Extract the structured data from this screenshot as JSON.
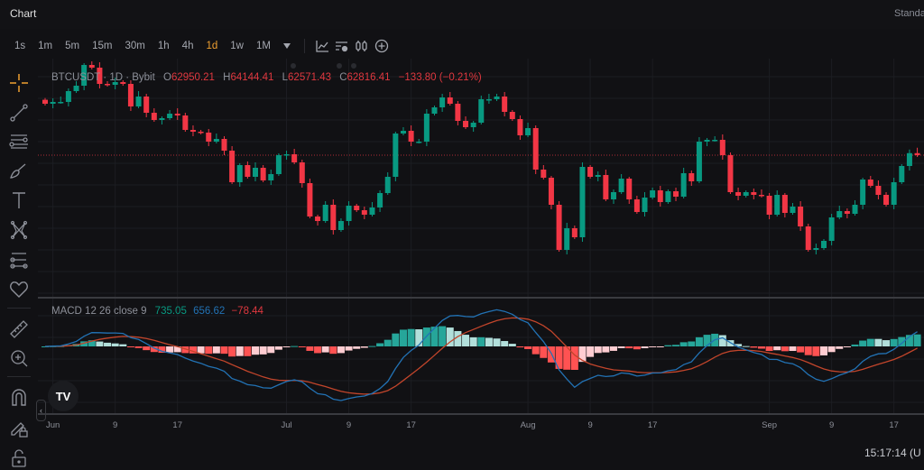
{
  "app": {
    "title": "Chart",
    "layout_label": "Standa"
  },
  "toolbar": {
    "timeframes": [
      {
        "label": "1s"
      },
      {
        "label": "1m"
      },
      {
        "label": "5m"
      },
      {
        "label": "15m"
      },
      {
        "label": "30m"
      },
      {
        "label": "1h"
      },
      {
        "label": "4h"
      },
      {
        "label": "1d",
        "active": true
      },
      {
        "label": "1w"
      },
      {
        "label": "1M"
      }
    ],
    "icons": [
      "chevron-down-icon",
      "indicators-icon",
      "chart-settings-icon",
      "candles-icon",
      "add-icon"
    ]
  },
  "left_toolbar": {
    "icons": [
      "crosshair-icon",
      "trend-line-icon",
      "fib-lines-icon",
      "brush-icon",
      "text-icon",
      "pattern-icon",
      "forecast-icon",
      "heart-icon",
      "ruler-icon",
      "zoom-in-icon",
      "magnet-icon",
      "lock-drawings-icon",
      "unlock-icon"
    ]
  },
  "legend": {
    "symbol": "BTCUSDT · 1D · Bybit",
    "open_label": "O",
    "open": "62950.21",
    "high_label": "H",
    "high": "64144.41",
    "low_label": "L",
    "low": "62571.43",
    "close_label": "C",
    "close": "62816.41",
    "change": "−133.80 (−0.21%)"
  },
  "macd_legend": {
    "label": "MACD 12 26 close 9",
    "value1": "735.05",
    "value2": "656.62",
    "value3": "−78.44"
  },
  "colors": {
    "up": "#089981",
    "down": "#f23645",
    "macd_line": "#2272b4",
    "signal_line": "#c2452b",
    "hist_up_strong": "#26a69a",
    "hist_up_weak": "#b2dfdb",
    "hist_down_strong": "#ff5252",
    "hist_down_weak": "#ffcdd2",
    "active_timeframe": "#f0a030"
  },
  "chart_data": {
    "type": "candlestick",
    "symbol": "BTCUSDT",
    "interval": "1D",
    "first_open": 66500,
    "closes": [
      66236,
      66356,
      66356,
      67076,
      67436,
      68816,
      68636,
      67556,
      67496,
      67676,
      67556,
      66056,
      66716,
      65636,
      65156,
      65276,
      65576,
      65456,
      64496,
      64376,
      64316,
      63716,
      63896,
      63116,
      61016,
      62156,
      61376,
      61976,
      61136,
      61556,
      62816,
      62876,
      62336,
      60956,
      58736,
      58436,
      59516,
      57836,
      58436,
      59456,
      59156,
      58856,
      59336,
      60296,
      61376,
      64256,
      64436,
      63716,
      63716,
      65576,
      65996,
      66656,
      66236,
      65096,
      64676,
      64976,
      66536,
      66536,
      66716,
      65696,
      65216,
      64136,
      64616,
      61856,
      61316,
      59516,
      56516,
      57956,
      57356,
      62036,
      61376,
      61496,
      59876,
      60356,
      61256,
      59876,
      59036,
      59996,
      60476,
      59696,
      60416,
      60056,
      61616,
      61076,
      63716,
      63836,
      63836,
      62816,
      60356,
      60116,
      60356,
      60176,
      60116,
      58856,
      60176,
      58976,
      59396,
      58076,
      56516,
      56636,
      57116,
      58676,
      59096,
      58916,
      59516,
      61196,
      60776,
      60176,
      59516,
      61016,
      62096,
      62950.21,
      62816.41
    ],
    "last_price": 62816.41,
    "x_tick_labels": [
      "Jun",
      "9",
      "17",
      "Jul",
      "9",
      "17",
      "Aug",
      "9",
      "17",
      "Sep",
      "9",
      "17"
    ],
    "grid": true,
    "indicator": {
      "name": "MACD",
      "fast": 12,
      "slow": 26,
      "signal": 9,
      "source": "close"
    }
  },
  "status": {
    "clock": "15:17:14 (U"
  }
}
